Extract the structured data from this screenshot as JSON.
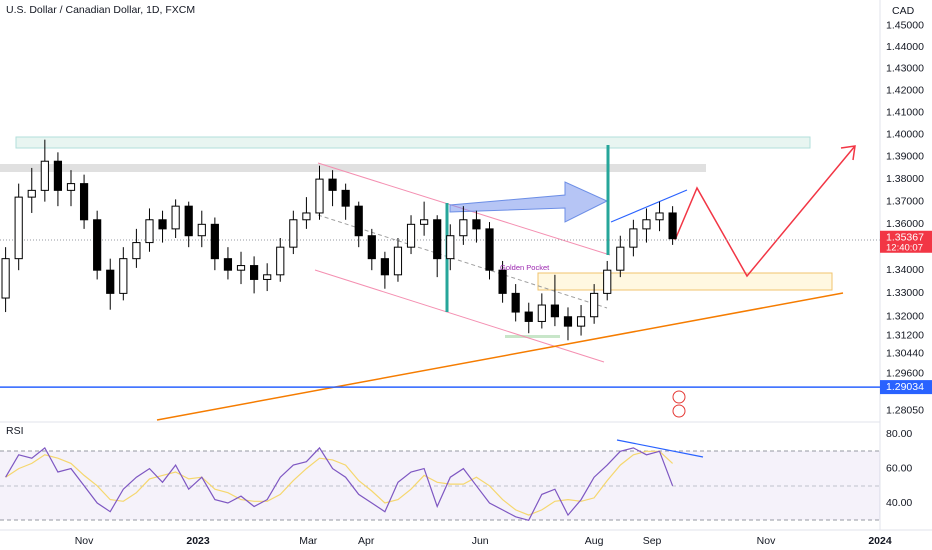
{
  "chart_data": {
    "type": "candlestick",
    "title": "U.S. Dollar / Canadian Dollar, 1D, FXCM",
    "currency": "CAD",
    "log_scale": true,
    "grid": false,
    "up_color": "#ffffff",
    "down_color": "#000000",
    "xlim": [
      -45,
      426
    ],
    "xticks": [
      {
        "value": 0,
        "label": "Nov"
      },
      {
        "value": 61,
        "label": "2023"
      },
      {
        "value": 120,
        "label": "Mar"
      },
      {
        "value": 151,
        "label": "Apr"
      },
      {
        "value": 212,
        "label": "Jun"
      },
      {
        "value": 273,
        "label": "Aug"
      },
      {
        "value": 304,
        "label": "Sep"
      },
      {
        "value": 365,
        "label": "Nov"
      },
      {
        "value": 426,
        "label": "2024"
      }
    ],
    "ylim": [
      1.2767,
      1.4622
    ],
    "yticks": [
      {
        "value": 1.45,
        "label": "1.45000"
      },
      {
        "value": 1.44,
        "label": "1.44000"
      },
      {
        "value": 1.43,
        "label": "1.43000"
      },
      {
        "value": 1.42,
        "label": "1.42000"
      },
      {
        "value": 1.41,
        "label": "1.41000"
      },
      {
        "value": 1.4,
        "label": "1.40000"
      },
      {
        "value": 1.39,
        "label": "1.39000"
      },
      {
        "value": 1.38,
        "label": "1.38000"
      },
      {
        "value": 1.37,
        "label": "1.37000"
      },
      {
        "value": 1.36,
        "label": "1.36000"
      },
      {
        "value": 1.34,
        "label": "1.34000"
      },
      {
        "value": 1.33,
        "label": "1.33000"
      },
      {
        "value": 1.32,
        "label": "1.32000"
      },
      {
        "value": 1.312,
        "label": "1.31200"
      },
      {
        "value": 1.3044,
        "label": "1.30440"
      },
      {
        "value": 1.296,
        "label": "1.29600"
      },
      {
        "value": 1.2805,
        "label": "1.28050"
      }
    ],
    "x": [
      -42,
      -35,
      -28,
      -21,
      -14,
      -7,
      0,
      7,
      14,
      21,
      28,
      35,
      42,
      49,
      56,
      63,
      70,
      77,
      84,
      91,
      98,
      105,
      112,
      119,
      126,
      133,
      140,
      147,
      154,
      161,
      168,
      175,
      182,
      189,
      196,
      203,
      210,
      217,
      224,
      231,
      238,
      245,
      252,
      259,
      266,
      273,
      280,
      287,
      294,
      301,
      308,
      315
    ],
    "open": [
      1.328,
      1.345,
      1.372,
      1.375,
      1.388,
      1.375,
      1.378,
      1.362,
      1.34,
      1.33,
      1.345,
      1.352,
      1.362,
      1.358,
      1.368,
      1.355,
      1.36,
      1.345,
      1.34,
      1.342,
      1.336,
      1.338,
      1.35,
      1.362,
      1.365,
      1.38,
      1.375,
      1.368,
      1.355,
      1.345,
      1.338,
      1.35,
      1.36,
      1.362,
      1.345,
      1.355,
      1.362,
      1.358,
      1.34,
      1.33,
      1.322,
      1.318,
      1.325,
      1.32,
      1.316,
      1.32,
      1.33,
      1.34,
      1.35,
      1.358,
      1.362,
      1.365
    ],
    "high": [
      1.35,
      1.378,
      1.385,
      1.3977,
      1.392,
      1.384,
      1.382,
      1.366,
      1.345,
      1.35,
      1.358,
      1.367,
      1.366,
      1.371,
      1.37,
      1.366,
      1.363,
      1.35,
      1.348,
      1.346,
      1.343,
      1.354,
      1.366,
      1.372,
      1.386,
      1.384,
      1.378,
      1.37,
      1.358,
      1.348,
      1.354,
      1.364,
      1.37,
      1.364,
      1.36,
      1.368,
      1.366,
      1.361,
      1.344,
      1.334,
      1.326,
      1.33,
      1.338,
      1.324,
      1.325,
      1.334,
      1.344,
      1.355,
      1.362,
      1.367,
      1.37,
      1.368
    ],
    "low": [
      1.322,
      1.34,
      1.365,
      1.37,
      1.368,
      1.368,
      1.358,
      1.336,
      1.323,
      1.327,
      1.341,
      1.348,
      1.352,
      1.354,
      1.35,
      1.35,
      1.34,
      1.336,
      1.334,
      1.33,
      1.331,
      1.335,
      1.347,
      1.358,
      1.362,
      1.368,
      1.362,
      1.35,
      1.34,
      1.332,
      1.335,
      1.347,
      1.355,
      1.337,
      1.34,
      1.351,
      1.352,
      1.336,
      1.326,
      1.318,
      1.313,
      1.315,
      1.316,
      1.31,
      1.312,
      1.317,
      1.327,
      1.337,
      1.346,
      1.352,
      1.357,
      1.351
    ],
    "close": [
      1.345,
      1.372,
      1.375,
      1.388,
      1.375,
      1.378,
      1.362,
      1.34,
      1.33,
      1.345,
      1.352,
      1.362,
      1.358,
      1.368,
      1.355,
      1.36,
      1.345,
      1.34,
      1.342,
      1.336,
      1.338,
      1.35,
      1.362,
      1.365,
      1.38,
      1.375,
      1.368,
      1.355,
      1.345,
      1.338,
      1.35,
      1.36,
      1.362,
      1.345,
      1.355,
      1.362,
      1.358,
      1.34,
      1.33,
      1.322,
      1.318,
      1.325,
      1.32,
      1.316,
      1.32,
      1.33,
      1.34,
      1.35,
      1.358,
      1.362,
      1.365,
      1.3537
    ],
    "last_price": {
      "value": 1.35367,
      "label": "1.35367",
      "color": "#f23645"
    },
    "countdown": "12:40:07",
    "level": {
      "value": 1.29034,
      "label": "1.29034",
      "color": "#2962ff"
    },
    "annotation": "Golden Pocket",
    "rsi": {
      "title": "RSI",
      "ylim": [
        29,
        87
      ],
      "yticks": [
        {
          "value": 80,
          "label": "80.00"
        },
        {
          "value": 60,
          "label": "60.00"
        },
        {
          "value": 40,
          "label": "40.00"
        }
      ],
      "series": [
        {
          "color": "#7e57c2",
          "values": [
            55,
            68,
            66,
            72,
            58,
            60,
            50,
            40,
            35,
            48,
            55,
            60,
            52,
            62,
            48,
            55,
            42,
            40,
            44,
            38,
            42,
            55,
            62,
            64,
            72,
            60,
            55,
            45,
            40,
            35,
            52,
            58,
            60,
            38,
            55,
            60,
            50,
            40,
            36,
            32,
            30,
            45,
            48,
            33,
            42,
            55,
            62,
            70,
            72,
            68,
            70,
            50
          ]
        },
        {
          "color": "#f5d76e",
          "values": [
            55,
            60,
            63,
            68,
            66,
            63,
            56,
            50,
            42,
            41,
            46,
            54,
            56,
            58,
            54,
            55,
            48,
            46,
            42,
            41,
            41,
            45,
            53,
            60,
            66,
            65,
            62,
            53,
            47,
            40,
            42,
            48,
            56,
            52,
            51,
            51,
            55,
            50,
            42,
            36,
            33,
            36,
            41,
            42,
            41,
            43,
            53,
            62,
            68,
            70,
            70,
            63
          ]
        }
      ]
    }
  }
}
